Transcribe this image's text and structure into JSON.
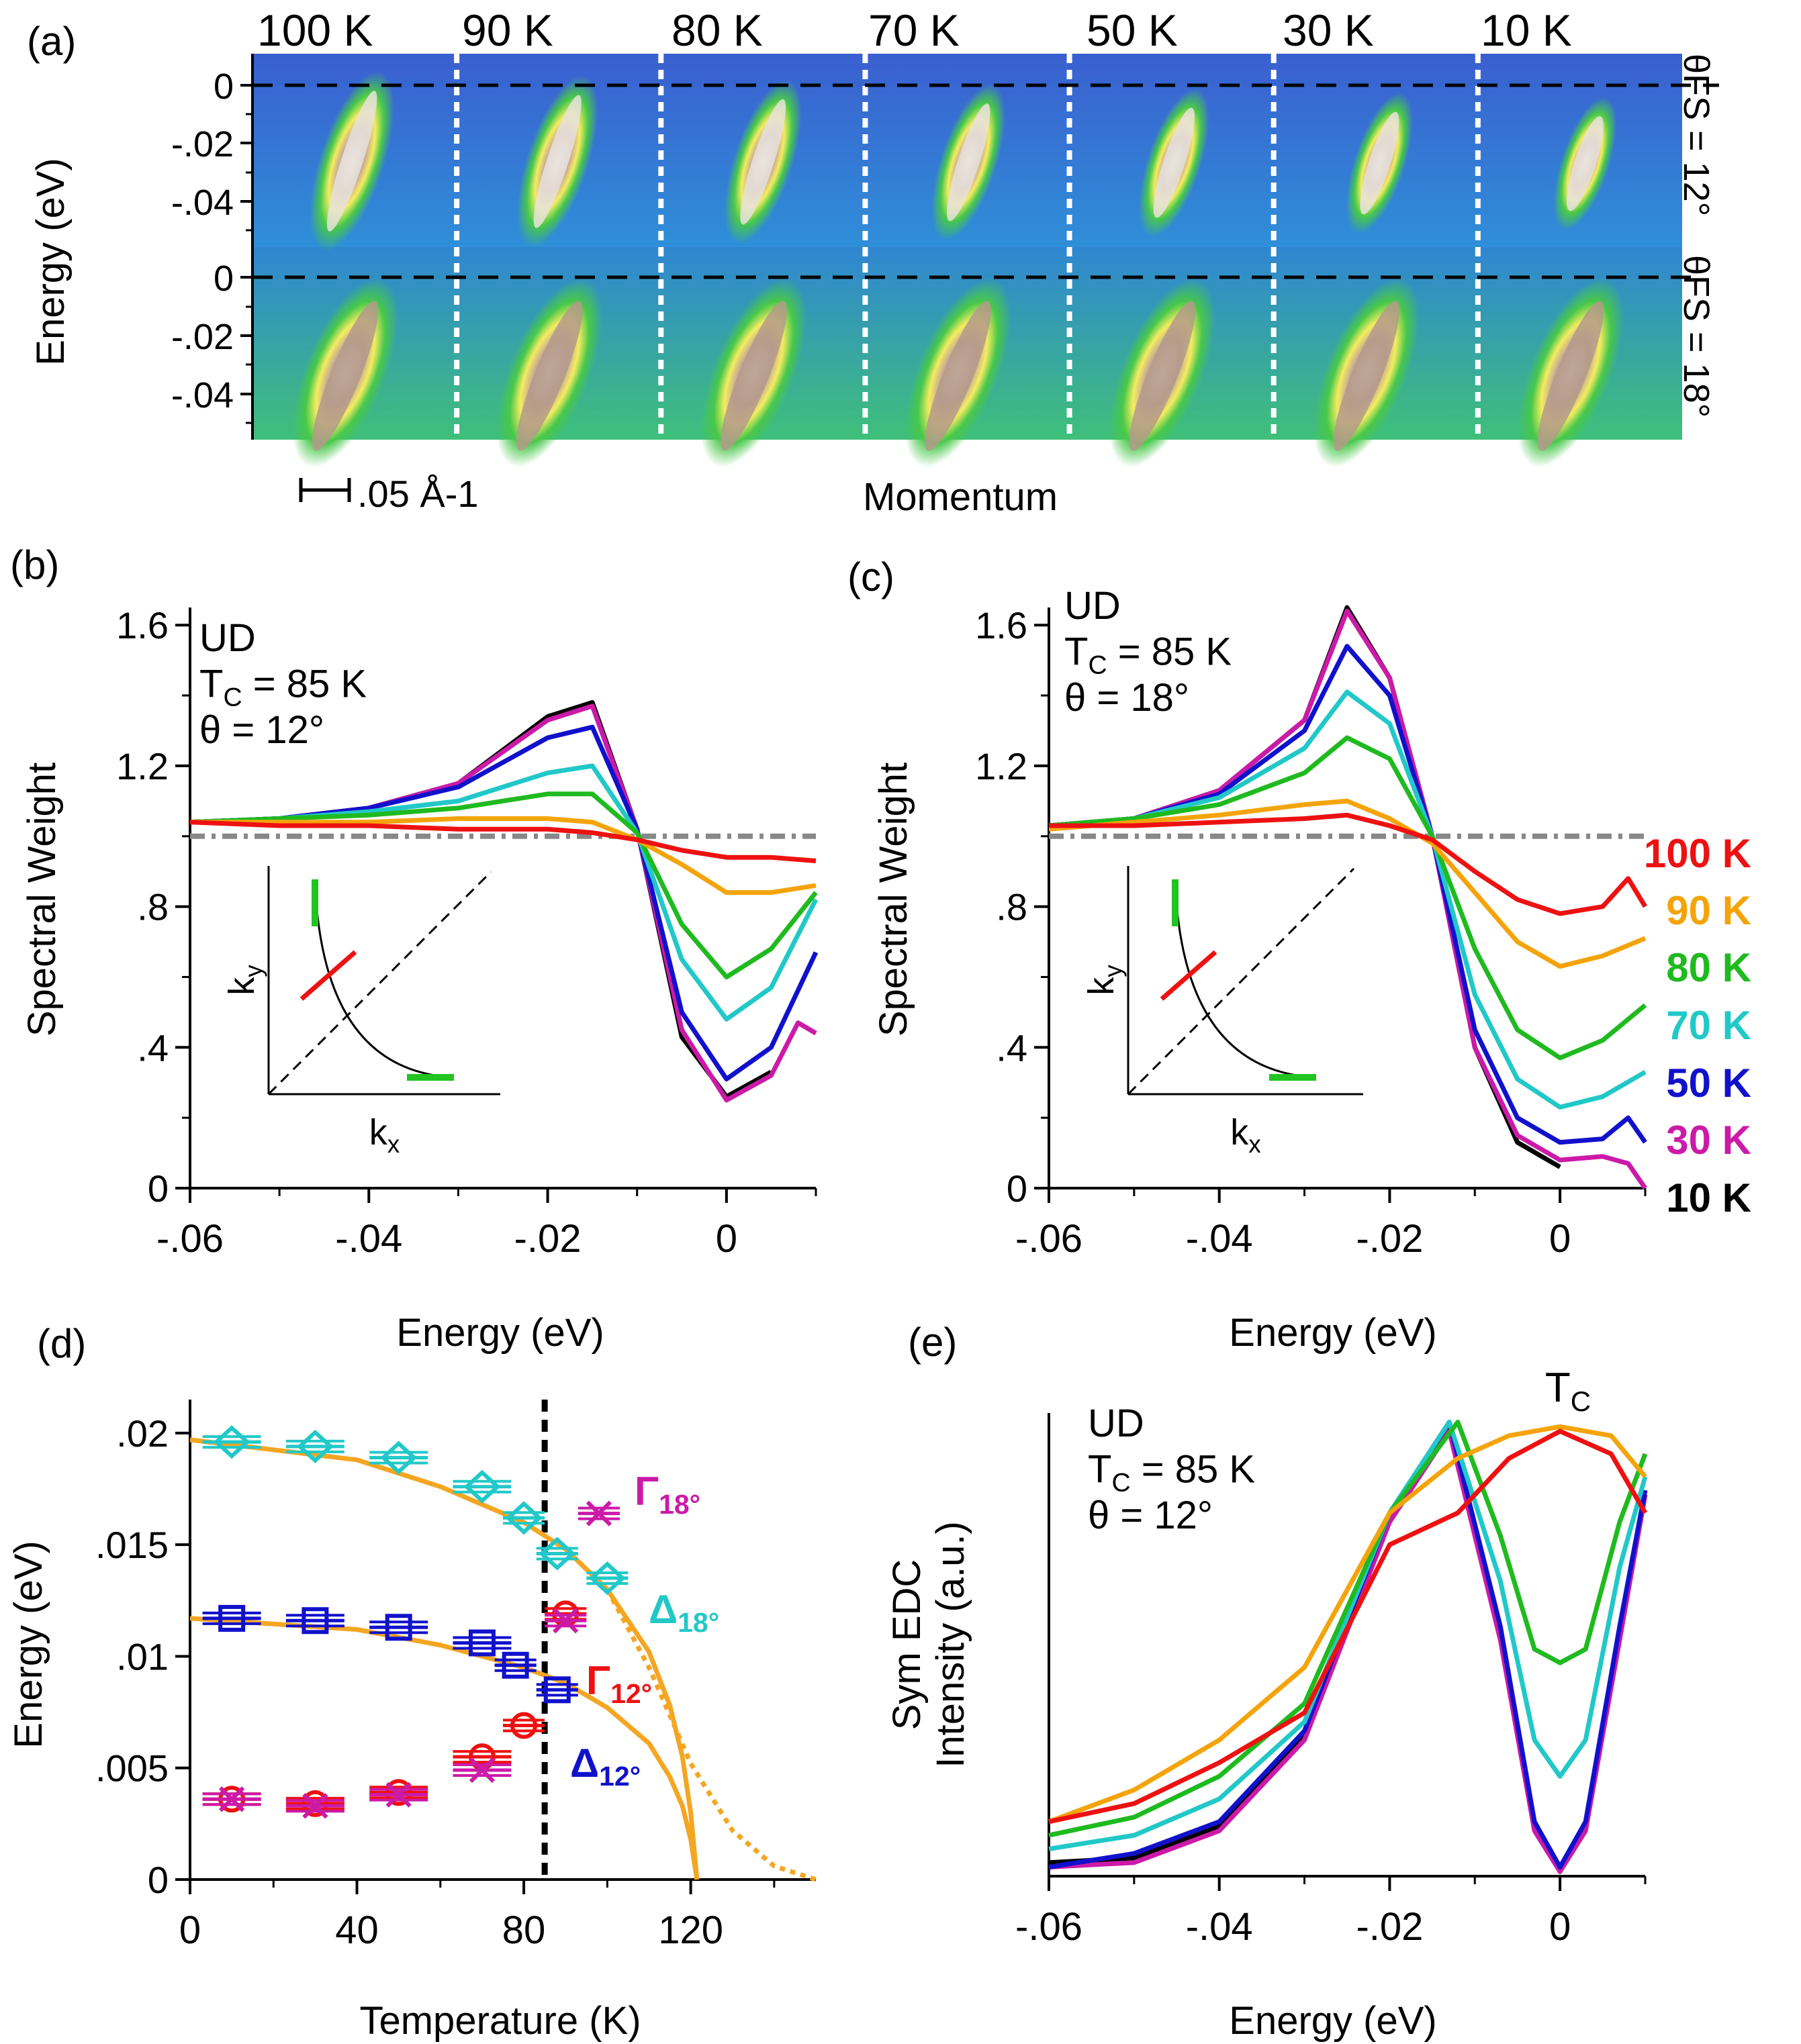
{
  "colors": {
    "red": "#ee1111",
    "orange": "#f4a40a",
    "green": "#1fba1f",
    "cyan": "#22c8c8",
    "blue": "#1111cc",
    "magenta": "#cc1aa8",
    "black": "#000000",
    "gray": "#888888",
    "fitorange": "#f4a622",
    "fs_green": "#22c422"
  },
  "panels": {
    "a": {
      "tag": "(a)",
      "temps": [
        "100 K",
        "90 K",
        "80 K",
        "70 K",
        "50 K",
        "30 K",
        "10 K"
      ],
      "ylabel": "Energy (eV)",
      "yticks": [
        "0",
        "-.02",
        "-.04"
      ],
      "row1_label": "θFS = 12°",
      "row2_label": "θFS = 18°",
      "scale_label": ".05 Å-1",
      "xlabel": "Momentum"
    },
    "b": {
      "tag": "(b)"
    },
    "c": {
      "tag": "(c)"
    },
    "d": {
      "tag": "(d)"
    },
    "e": {
      "tag": "(e)"
    }
  },
  "chart_data": [
    {
      "id": "b",
      "type": "line",
      "title": "",
      "annotation": [
        "UD",
        "TC = 85 K",
        "θ = 12°"
      ],
      "xlabel": "Energy (eV)",
      "ylabel": "Spectral Weight",
      "xlim": [
        -0.06,
        0.01
      ],
      "ylim": [
        0,
        1.65
      ],
      "xticks": [
        -0.06,
        -0.04,
        -0.02,
        0
      ],
      "xtick_labels": [
        "-.06",
        "-.04",
        "-.02",
        "0"
      ],
      "yticks": [
        0,
        0.4,
        0.8,
        1.2,
        1.6
      ],
      "ytick_labels": [
        "0",
        ".4",
        ".8",
        "1.2",
        "1.6"
      ],
      "reference_line": 1.0,
      "inset": {
        "xlabel": "kx",
        "ylabel": "ky"
      },
      "series": [
        {
          "name": "100 K",
          "color": "red",
          "x": [
            -0.06,
            -0.05,
            -0.04,
            -0.03,
            -0.02,
            -0.015,
            -0.01,
            -0.005,
            0,
            0.005,
            0.01
          ],
          "y": [
            1.04,
            1.03,
            1.03,
            1.02,
            1.02,
            1.01,
            0.99,
            0.96,
            0.94,
            0.94,
            0.93
          ]
        },
        {
          "name": "90 K",
          "color": "orange",
          "x": [
            -0.06,
            -0.05,
            -0.04,
            -0.03,
            -0.02,
            -0.015,
            -0.01,
            -0.005,
            0,
            0.005,
            0.01
          ],
          "y": [
            1.04,
            1.04,
            1.04,
            1.05,
            1.05,
            1.04,
            0.99,
            0.92,
            0.84,
            0.84,
            0.86
          ]
        },
        {
          "name": "80 K",
          "color": "green",
          "x": [
            -0.06,
            -0.05,
            -0.04,
            -0.03,
            -0.02,
            -0.015,
            -0.01,
            -0.005,
            0,
            0.005,
            0.01
          ],
          "y": [
            1.04,
            1.05,
            1.06,
            1.08,
            1.12,
            1.12,
            1.01,
            0.75,
            0.6,
            0.68,
            0.84
          ]
        },
        {
          "name": "70 K",
          "color": "cyan",
          "x": [
            -0.06,
            -0.05,
            -0.04,
            -0.03,
            -0.02,
            -0.015,
            -0.01,
            -0.005,
            0,
            0.005,
            0.01
          ],
          "y": [
            1.04,
            1.05,
            1.07,
            1.1,
            1.18,
            1.2,
            1.01,
            0.65,
            0.48,
            0.57,
            0.82
          ]
        },
        {
          "name": "50 K",
          "color": "blue",
          "x": [
            -0.06,
            -0.05,
            -0.04,
            -0.03,
            -0.02,
            -0.015,
            -0.01,
            -0.005,
            0,
            0.005,
            0.01
          ],
          "y": [
            1.04,
            1.05,
            1.08,
            1.14,
            1.28,
            1.31,
            1.02,
            0.5,
            0.31,
            0.4,
            0.67
          ]
        },
        {
          "name": "30 K",
          "color": "magenta",
          "x": [
            -0.06,
            -0.05,
            -0.04,
            -0.03,
            -0.02,
            -0.015,
            -0.01,
            -0.005,
            0,
            0.005,
            0.008,
            0.01
          ],
          "y": [
            1.04,
            1.05,
            1.08,
            1.15,
            1.33,
            1.37,
            1.02,
            0.45,
            0.25,
            0.32,
            0.47,
            0.44
          ]
        },
        {
          "name": "10 K",
          "color": "black",
          "x": [
            -0.06,
            -0.05,
            -0.04,
            -0.03,
            -0.02,
            -0.015,
            -0.01,
            -0.005,
            0,
            0.005
          ],
          "y": [
            1.04,
            1.05,
            1.08,
            1.15,
            1.34,
            1.38,
            1.02,
            0.43,
            0.26,
            0.33
          ]
        }
      ]
    },
    {
      "id": "c",
      "type": "line",
      "title": "",
      "annotation": [
        "UD",
        "TC = 85 K",
        "θ = 18°"
      ],
      "xlabel": "Energy (eV)",
      "ylabel": "Spectral Weight",
      "xlim": [
        -0.06,
        0.01
      ],
      "ylim": [
        0,
        1.65
      ],
      "xticks": [
        -0.06,
        -0.04,
        -0.02,
        0
      ],
      "xtick_labels": [
        "-.06",
        "-.04",
        "-.02",
        "0"
      ],
      "yticks": [
        0,
        0.4,
        0.8,
        1.2,
        1.6
      ],
      "ytick_labels": [
        "0",
        ".4",
        ".8",
        "1.2",
        "1.6"
      ],
      "reference_line": 1.0,
      "inset": {
        "xlabel": "kx",
        "ylabel": "ky"
      },
      "legend": [
        "100 K",
        "90 K",
        "80 K",
        "70 K",
        "50 K",
        "30 K",
        "10 K"
      ],
      "series": [
        {
          "name": "100 K",
          "color": "red",
          "x": [
            -0.06,
            -0.05,
            -0.04,
            -0.03,
            -0.025,
            -0.02,
            -0.015,
            -0.01,
            -0.005,
            0,
            0.005,
            0.008,
            0.01
          ],
          "y": [
            1.03,
            1.03,
            1.04,
            1.05,
            1.06,
            1.03,
            0.99,
            0.9,
            0.82,
            0.78,
            0.8,
            0.88,
            0.8
          ]
        },
        {
          "name": "90 K",
          "color": "orange",
          "x": [
            -0.06,
            -0.05,
            -0.04,
            -0.03,
            -0.025,
            -0.02,
            -0.015,
            -0.01,
            -0.005,
            0,
            0.005,
            0.01
          ],
          "y": [
            1.02,
            1.04,
            1.06,
            1.09,
            1.1,
            1.05,
            0.98,
            0.84,
            0.7,
            0.63,
            0.66,
            0.71
          ]
        },
        {
          "name": "80 K",
          "color": "green",
          "x": [
            -0.06,
            -0.05,
            -0.04,
            -0.03,
            -0.025,
            -0.02,
            -0.015,
            -0.01,
            -0.005,
            0,
            0.005,
            0.01
          ],
          "y": [
            1.03,
            1.05,
            1.09,
            1.18,
            1.28,
            1.22,
            1.0,
            0.68,
            0.45,
            0.37,
            0.42,
            0.52
          ]
        },
        {
          "name": "70 K",
          "color": "cyan",
          "x": [
            -0.06,
            -0.05,
            -0.04,
            -0.03,
            -0.025,
            -0.02,
            -0.015,
            -0.01,
            -0.005,
            0,
            0.005,
            0.01
          ],
          "y": [
            1.03,
            1.05,
            1.11,
            1.25,
            1.41,
            1.32,
            1.0,
            0.55,
            0.31,
            0.23,
            0.26,
            0.33
          ]
        },
        {
          "name": "50 K",
          "color": "blue",
          "x": [
            -0.06,
            -0.05,
            -0.04,
            -0.03,
            -0.025,
            -0.02,
            -0.015,
            -0.01,
            -0.005,
            0,
            0.005,
            0.008,
            0.01
          ],
          "y": [
            1.03,
            1.05,
            1.12,
            1.3,
            1.54,
            1.4,
            1.0,
            0.45,
            0.2,
            0.13,
            0.14,
            0.2,
            0.13
          ]
        },
        {
          "name": "30 K",
          "color": "magenta",
          "x": [
            -0.06,
            -0.05,
            -0.04,
            -0.03,
            -0.025,
            -0.02,
            -0.015,
            -0.01,
            -0.005,
            0,
            0.005,
            0.008,
            0.01
          ],
          "y": [
            1.03,
            1.05,
            1.13,
            1.33,
            1.64,
            1.45,
            1.0,
            0.4,
            0.15,
            0.08,
            0.09,
            0.07,
            0.0
          ]
        },
        {
          "name": "10 K",
          "color": "black",
          "x": [
            -0.06,
            -0.05,
            -0.04,
            -0.03,
            -0.025,
            -0.02,
            -0.015,
            -0.01,
            -0.005,
            0
          ],
          "y": [
            1.03,
            1.05,
            1.13,
            1.33,
            1.65,
            1.45,
            1.0,
            0.4,
            0.13,
            0.06
          ]
        }
      ]
    },
    {
      "id": "d",
      "type": "scatter",
      "title": "",
      "xlabel": "Temperature (K)",
      "ylabel": "Energy (eV)",
      "xlim": [
        0,
        150
      ],
      "ylim": [
        0,
        0.0215
      ],
      "xticks": [
        0,
        40,
        80,
        120
      ],
      "xtick_labels": [
        "0",
        "40",
        "80",
        "120"
      ],
      "yticks": [
        0,
        0.005,
        0.01,
        0.015,
        0.02
      ],
      "ytick_labels": [
        "0",
        ".005",
        ".01",
        ".015",
        ".02"
      ],
      "tc_line": 85,
      "labels": {
        "gamma18": "Γ18°",
        "delta18": "Δ18°",
        "gamma12": "Γ12°",
        "delta12": "Δ12°"
      },
      "series": [
        {
          "name": "Δ18°",
          "color": "cyan",
          "marker": "diamond",
          "x": [
            10,
            30,
            50,
            70,
            80,
            88,
            100
          ],
          "y": [
            0.0196,
            0.0194,
            0.0189,
            0.0176,
            0.0162,
            0.0146,
            0.0135
          ],
          "xerr": [
            7,
            7,
            7,
            7,
            5,
            5,
            5
          ]
        },
        {
          "name": "Δ12°",
          "color": "blue",
          "marker": "square",
          "x": [
            10,
            30,
            50,
            70,
            78,
            88
          ],
          "y": [
            0.0117,
            0.0116,
            0.0113,
            0.0106,
            0.0096,
            0.0085
          ],
          "xerr": [
            7,
            7,
            7,
            7,
            5,
            5
          ]
        },
        {
          "name": "Γ12°",
          "color": "red",
          "marker": "circle",
          "x": [
            10,
            30,
            50,
            70,
            80,
            90
          ],
          "y": [
            0.0036,
            0.0034,
            0.0039,
            0.0055,
            0.0069,
            0.0119
          ],
          "xerr": [
            7,
            7,
            7,
            7,
            5,
            5
          ]
        },
        {
          "name": "Γ12° (x)",
          "color": "magenta",
          "marker": "x",
          "x": [
            10,
            30,
            50,
            70,
            90
          ],
          "y": [
            0.0036,
            0.0033,
            0.0038,
            0.0049,
            0.0116
          ],
          "xerr": [
            7,
            7,
            7,
            7,
            5
          ]
        },
        {
          "name": "Γ18°",
          "color": "magenta",
          "marker": "x",
          "x": [
            98
          ],
          "y": [
            0.0164
          ],
          "xerr": [
            5
          ]
        }
      ],
      "fits": [
        {
          "color": "fitorange",
          "style": "solid",
          "x": [
            0,
            40,
            60,
            80,
            90,
            100,
            110,
            115,
            118,
            120,
            121.5
          ],
          "y": [
            0.0197,
            0.0188,
            0.0176,
            0.016,
            0.0148,
            0.013,
            0.0102,
            0.0078,
            0.0055,
            0.003,
            0.0
          ]
        },
        {
          "color": "fitorange",
          "style": "solid",
          "x": [
            0,
            40,
            60,
            80,
            90,
            100,
            110,
            115,
            118,
            120,
            121.5
          ],
          "y": [
            0.0117,
            0.0112,
            0.0105,
            0.0095,
            0.0088,
            0.0077,
            0.0061,
            0.0046,
            0.0033,
            0.0018,
            0.0
          ]
        },
        {
          "color": "fitorange",
          "style": "dotted",
          "x": [
            100,
            110,
            120,
            130,
            140,
            150
          ],
          "y": [
            0.013,
            0.0095,
            0.0052,
            0.0022,
            0.0006,
            0.0
          ]
        }
      ]
    },
    {
      "id": "e",
      "type": "line",
      "title": "",
      "annotation": [
        "UD",
        "TC = 85 K",
        "θ = 12°"
      ],
      "top_label": "TC",
      "xlabel": "Energy (eV)",
      "ylabel": [
        "Sym EDC",
        "Intensity (a.u.)"
      ],
      "xlim": [
        -0.06,
        0.01
      ],
      "ylim": [
        0,
        1.02
      ],
      "xticks": [
        -0.06,
        -0.04,
        -0.02,
        0
      ],
      "xtick_labels": [
        "-.06",
        "-.04",
        "-.02",
        "0"
      ],
      "series": [
        {
          "name": "100 K",
          "color": "red",
          "x": [
            -0.06,
            -0.05,
            -0.04,
            -0.03,
            -0.02,
            -0.012,
            -0.006,
            0,
            0.006,
            0.01
          ],
          "y": [
            0.12,
            0.16,
            0.25,
            0.36,
            0.73,
            0.8,
            0.92,
            0.98,
            0.93,
            0.8
          ]
        },
        {
          "name": "90 K",
          "color": "orange",
          "x": [
            -0.06,
            -0.05,
            -0.04,
            -0.03,
            -0.02,
            -0.012,
            -0.006,
            0,
            0.006,
            0.01
          ],
          "y": [
            0.12,
            0.19,
            0.3,
            0.46,
            0.8,
            0.92,
            0.97,
            0.99,
            0.97,
            0.88
          ]
        },
        {
          "name": "80 K",
          "color": "green",
          "x": [
            -0.06,
            -0.05,
            -0.04,
            -0.03,
            -0.02,
            -0.012,
            -0.007,
            -0.003,
            0,
            0.003,
            0.007,
            0.01
          ],
          "y": [
            0.09,
            0.13,
            0.22,
            0.38,
            0.8,
            1.0,
            0.75,
            0.5,
            0.47,
            0.5,
            0.78,
            0.93
          ]
        },
        {
          "name": "70 K",
          "color": "cyan",
          "x": [
            -0.06,
            -0.05,
            -0.04,
            -0.03,
            -0.02,
            -0.013,
            -0.007,
            -0.003,
            0,
            0.003,
            0.007,
            0.01
          ],
          "y": [
            0.06,
            0.09,
            0.17,
            0.34,
            0.8,
            1.0,
            0.65,
            0.3,
            0.22,
            0.3,
            0.68,
            0.88
          ]
        },
        {
          "name": "50 K",
          "color": "blue",
          "x": [
            -0.06,
            -0.05,
            -0.04,
            -0.03,
            -0.02,
            -0.013,
            -0.007,
            -0.003,
            0,
            0.003,
            0.007,
            0.01
          ],
          "y": [
            0.02,
            0.05,
            0.12,
            0.32,
            0.8,
            1.0,
            0.55,
            0.12,
            0.02,
            0.12,
            0.55,
            0.85
          ]
        },
        {
          "name": "30 K",
          "color": "magenta",
          "x": [
            -0.06,
            -0.05,
            -0.04,
            -0.03,
            -0.02,
            -0.013,
            -0.007,
            -0.003,
            0,
            0.003,
            0.007,
            0.01
          ],
          "y": [
            0.02,
            0.03,
            0.1,
            0.3,
            0.78,
            0.98,
            0.52,
            0.1,
            0.01,
            0.1,
            0.52,
            0.84
          ]
        },
        {
          "name": "10 K",
          "color": "black",
          "x": [
            -0.06,
            -0.05,
            -0.04,
            -0.03,
            -0.02,
            -0.013,
            -0.007,
            -0.003,
            0,
            0.003,
            0.007,
            0.01
          ],
          "y": [
            0.03,
            0.04,
            0.11,
            0.31,
            0.79,
            0.99,
            0.53,
            0.11,
            0.01,
            0.11,
            0.53,
            0.84
          ]
        }
      ]
    }
  ]
}
